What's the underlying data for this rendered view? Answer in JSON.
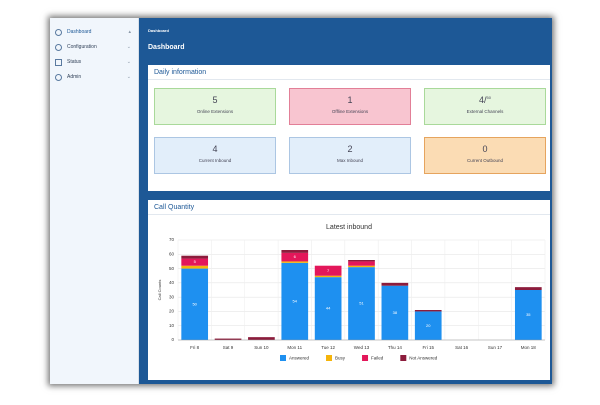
{
  "sidebar": {
    "items": [
      "Dashboard",
      "Configuration",
      "Status",
      "Admin"
    ]
  },
  "header": {
    "breadcrumb": "Dashboard",
    "title": "Dashboard"
  },
  "daily": {
    "title": "Daily information",
    "cards": [
      {
        "value": 5,
        "label": "Online Extensions"
      },
      {
        "value": 1,
        "label": "Offline Extensions"
      },
      {
        "value": 4,
        "total": 50,
        "label": "External Channels"
      },
      {
        "value": 4,
        "label": "Current Inbound"
      },
      {
        "value": 2,
        "label": "Max Inbound"
      },
      {
        "value": 0,
        "label": "Current Outbound"
      }
    ]
  },
  "call_quantity": {
    "title": "Call Quantity"
  },
  "chart_data": {
    "type": "bar",
    "stacked": true,
    "title": "Latest inbound",
    "y_label": "Call Counts",
    "categories": [
      "Fri 8",
      "Sat 9",
      "Sun 10",
      "Mon 11",
      "Tue 12",
      "Wed 13",
      "Thu 14",
      "Fri 15",
      "Sat 16",
      "Sun 17",
      "Mon 18"
    ],
    "series": [
      {
        "name": "Answered",
        "color": "#1e90f0",
        "values": [
          50,
          0,
          0,
          54,
          44,
          51,
          38,
          20,
          0,
          0,
          35
        ]
      },
      {
        "name": "Busy",
        "color": "#f5b40a",
        "values": [
          2,
          0,
          0,
          1,
          1,
          1,
          0,
          0,
          0,
          0,
          0
        ]
      },
      {
        "name": "Failed",
        "color": "#e3175a",
        "values": [
          5,
          0,
          0,
          6,
          7,
          3,
          0,
          0,
          0,
          0,
          0
        ]
      },
      {
        "name": "Not Answered",
        "color": "#8c1c3c",
        "values": [
          2,
          1,
          2,
          2,
          0,
          1,
          2,
          1,
          0,
          0,
          2
        ]
      }
    ],
    "ylim": [
      0,
      70
    ],
    "yticks": [
      0,
      10,
      20,
      30,
      40,
      50,
      60,
      70
    ],
    "grid": true,
    "legend": "bottom"
  }
}
